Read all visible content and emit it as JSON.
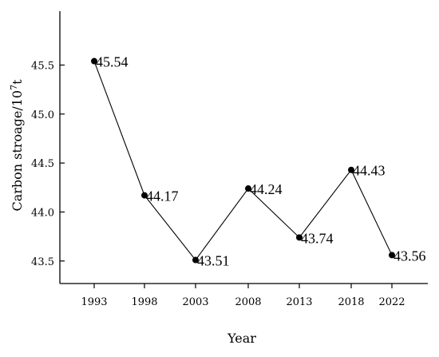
{
  "chart_data": {
    "type": "line",
    "x": [
      "1993",
      "1998",
      "2003",
      "2008",
      "2013",
      "2018",
      "2022"
    ],
    "series": [
      {
        "values": [
          45.54,
          44.17,
          43.51,
          44.24,
          43.74,
          44.43,
          43.56
        ]
      }
    ],
    "point_labels": [
      "45.54",
      "44.17",
      "43.51",
      "44.24",
      "43.74",
      "44.43",
      "43.56"
    ],
    "xlabel": "Year",
    "ylabel": "Carbon stroage/10",
    "ylabel_superscript": "7",
    "ylabel_suffix": "t",
    "ylim": [
      43.27,
      46.05
    ],
    "yticks": [
      43.5,
      44.0,
      44.5,
      45.0,
      45.5
    ],
    "ytick_labels": [
      "43.5",
      "44.0",
      "44.5",
      "45.0",
      "45.5"
    ],
    "grid": false,
    "legend": "none",
    "color": "#000000"
  }
}
